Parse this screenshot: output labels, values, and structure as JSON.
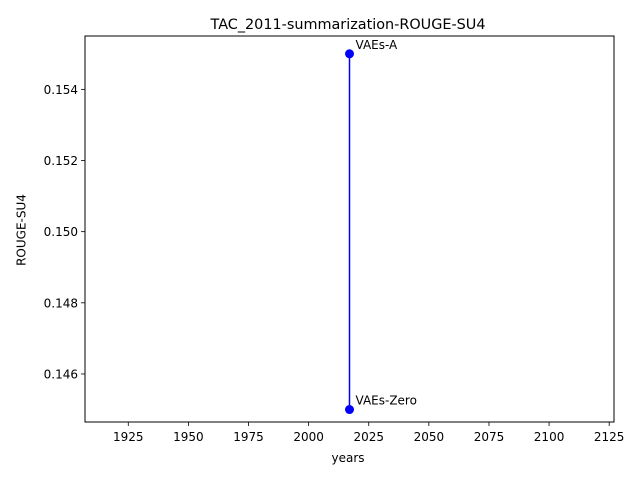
{
  "chart_data": {
    "type": "line",
    "title": "TAC_2011-summarization-ROUGE-SU4",
    "xlabel": "years",
    "ylabel": "ROUGE-SU4",
    "xlim": [
      1907,
      2127
    ],
    "ylim": [
      0.14465,
      0.1555
    ],
    "x_ticks": [
      1925,
      1950,
      1975,
      2000,
      2025,
      2050,
      2075,
      2100,
      2125
    ],
    "y_ticks": [
      0.146,
      0.148,
      0.15,
      0.152,
      0.154
    ],
    "y_tick_labels": [
      "0.146",
      "0.148",
      "0.150",
      "0.152",
      "0.154"
    ],
    "grid": false,
    "series": [
      {
        "color": "#0000ff",
        "points": [
          {
            "x": 2017,
            "y": 0.145,
            "label": "VAEs-Zero"
          },
          {
            "x": 2017,
            "y": 0.155,
            "label": "VAEs-A"
          }
        ]
      }
    ]
  }
}
